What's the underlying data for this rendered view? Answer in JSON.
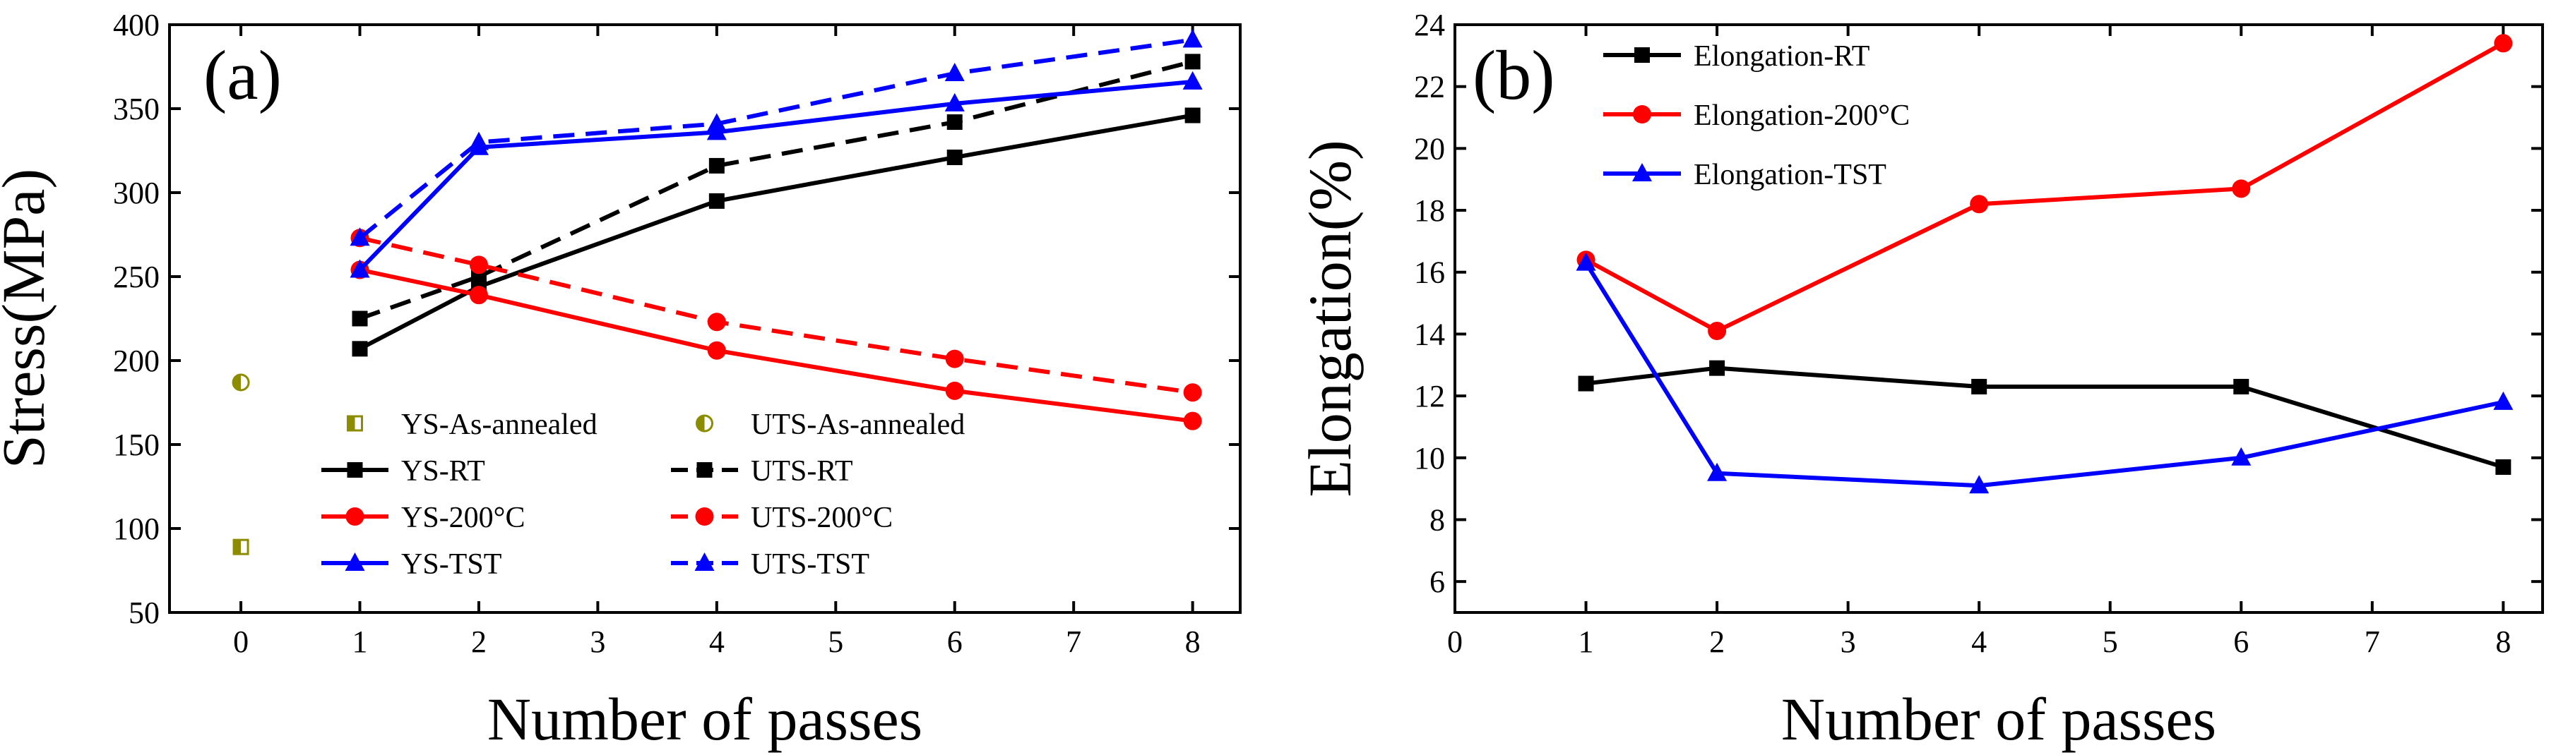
{
  "chart_data": [
    {
      "type": "line",
      "panel_label": "(a)",
      "xlabel": "Number of passes",
      "ylabel": "Stress(MPa)",
      "xlim": [
        -0.6,
        8.4
      ],
      "ylim": [
        50,
        400
      ],
      "xticks": [
        0,
        1,
        2,
        3,
        4,
        5,
        6,
        7,
        8
      ],
      "yticks": [
        50,
        100,
        150,
        200,
        250,
        300,
        350,
        400
      ],
      "series": [
        {
          "name": "YS-As-annealed",
          "x": [
            0
          ],
          "y": [
            89
          ],
          "color": "#8c8c00",
          "marker": "half-square",
          "dash": false,
          "line": false
        },
        {
          "name": "UTS-As-annealed",
          "x": [
            0
          ],
          "y": [
            187
          ],
          "color": "#8c8c00",
          "marker": "half-circle",
          "dash": false,
          "line": false
        },
        {
          "name": "YS-RT",
          "x": [
            1,
            2,
            4,
            6,
            8
          ],
          "y": [
            207,
            244,
            295,
            321,
            346
          ],
          "color": "#000000",
          "marker": "square",
          "dash": false,
          "line": true
        },
        {
          "name": "UTS-RT",
          "x": [
            1,
            2,
            4,
            6,
            8
          ],
          "y": [
            225,
            250,
            316,
            342,
            378
          ],
          "color": "#000000",
          "marker": "square",
          "dash": true,
          "line": true
        },
        {
          "name": "YS-200°C",
          "x": [
            1,
            2,
            4,
            6,
            8
          ],
          "y": [
            254,
            239,
            206,
            182,
            164
          ],
          "color": "#ff0000",
          "marker": "circle",
          "dash": false,
          "line": true
        },
        {
          "name": "UTS-200°C",
          "x": [
            1,
            2,
            4,
            6,
            8
          ],
          "y": [
            273,
            257,
            223,
            201,
            181
          ],
          "color": "#ff0000",
          "marker": "circle",
          "dash": true,
          "line": true
        },
        {
          "name": "YS-TST",
          "x": [
            1,
            2,
            4,
            6,
            8
          ],
          "y": [
            254,
            327,
            336,
            353,
            366
          ],
          "color": "#0000ff",
          "marker": "triangle",
          "dash": false,
          "line": true
        },
        {
          "name": "UTS-TST",
          "x": [
            1,
            2,
            4,
            6,
            8
          ],
          "y": [
            273,
            330,
            341,
            371,
            391
          ],
          "color": "#0000ff",
          "marker": "triangle",
          "dash": true,
          "line": true
        }
      ],
      "legend": {
        "placement": "lower-left",
        "rows": [
          [
            "YS-As-annealed",
            "UTS-As-annealed"
          ],
          [
            "YS-RT",
            "UTS-RT"
          ],
          [
            "YS-200°C",
            "UTS-200°C"
          ],
          [
            "YS-TST",
            "UTS-TST"
          ]
        ]
      }
    },
    {
      "type": "line",
      "panel_label": "(b)",
      "xlabel": "Number of passes",
      "ylabel": "Elongation(%)",
      "xlim": [
        0,
        8.3
      ],
      "ylim": [
        5,
        24
      ],
      "xticks": [
        0,
        1,
        2,
        3,
        4,
        5,
        6,
        7,
        8
      ],
      "yticks": [
        6,
        8,
        10,
        12,
        14,
        16,
        18,
        20,
        22,
        24
      ],
      "series": [
        {
          "name": "Elongation-RT",
          "x": [
            1,
            2,
            4,
            6,
            8
          ],
          "y": [
            12.4,
            12.9,
            12.3,
            12.3,
            9.7
          ],
          "color": "#000000",
          "marker": "square",
          "dash": false,
          "line": true
        },
        {
          "name": "Elongation-200°C",
          "x": [
            1,
            2,
            4,
            6,
            8
          ],
          "y": [
            16.4,
            14.1,
            18.2,
            18.7,
            23.4
          ],
          "color": "#ff0000",
          "marker": "circle",
          "dash": false,
          "line": true
        },
        {
          "name": "Elongation-TST",
          "x": [
            1,
            2,
            4,
            6,
            8
          ],
          "y": [
            16.3,
            9.5,
            9.1,
            10.0,
            11.8
          ],
          "color": "#0000ff",
          "marker": "triangle",
          "dash": false,
          "line": true
        }
      ],
      "legend": {
        "placement": "top-left",
        "rows": [
          [
            "Elongation-RT"
          ],
          [
            "Elongation-200°C"
          ],
          [
            "Elongation-TST"
          ]
        ]
      }
    }
  ]
}
